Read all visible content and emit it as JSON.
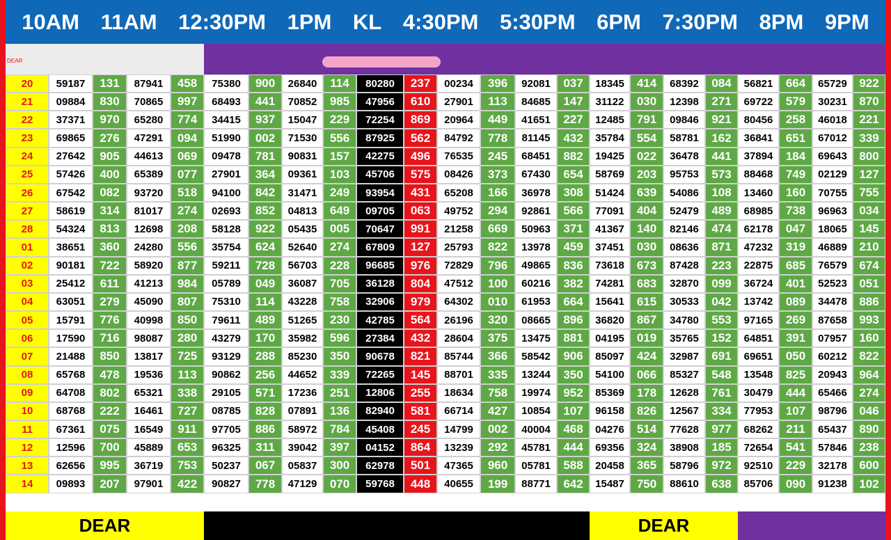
{
  "header": [
    "10AM",
    "11AM",
    "12:30PM",
    "1PM",
    "KL",
    "4:30PM",
    "5:30PM",
    "6PM",
    "7:30PM",
    "8PM",
    "9PM"
  ],
  "label": "DEAR",
  "table": {
    "rows": [
      [
        "20",
        "59187",
        "131",
        "87941",
        "458",
        "75380",
        "900",
        "26840",
        "114",
        "80280",
        "237",
        "00234",
        "396",
        "92081",
        "037",
        "18345",
        "414",
        "68392",
        "084",
        "56821",
        "664",
        "65729",
        "922"
      ],
      [
        "21",
        "09884",
        "830",
        "70865",
        "997",
        "68493",
        "441",
        "70852",
        "985",
        "47956",
        "610",
        "27901",
        "113",
        "84685",
        "147",
        "31122",
        "030",
        "12398",
        "271",
        "69722",
        "579",
        "30231",
        "870"
      ],
      [
        "22",
        "37371",
        "970",
        "65280",
        "774",
        "34415",
        "937",
        "15047",
        "229",
        "72254",
        "869",
        "20964",
        "449",
        "41651",
        "227",
        "12485",
        "791",
        "09846",
        "921",
        "80456",
        "258",
        "46018",
        "221"
      ],
      [
        "23",
        "69865",
        "276",
        "47291",
        "094",
        "51990",
        "002",
        "71530",
        "556",
        "87925",
        "562",
        "84792",
        "778",
        "81145",
        "432",
        "35784",
        "554",
        "58781",
        "162",
        "36841",
        "651",
        "67012",
        "339"
      ],
      [
        "24",
        "27642",
        "905",
        "44613",
        "069",
        "09478",
        "781",
        "90831",
        "157",
        "42275",
        "496",
        "76535",
        "245",
        "68451",
        "882",
        "19425",
        "022",
        "36478",
        "441",
        "37894",
        "184",
        "69643",
        "800"
      ],
      [
        "25",
        "57426",
        "400",
        "65389",
        "077",
        "27901",
        "364",
        "09361",
        "103",
        "45706",
        "575",
        "08426",
        "373",
        "67430",
        "654",
        "58769",
        "203",
        "95753",
        "573",
        "88468",
        "749",
        "02129",
        "127"
      ],
      [
        "26",
        "67542",
        "082",
        "93720",
        "518",
        "94100",
        "842",
        "31471",
        "249",
        "93954",
        "431",
        "65208",
        "166",
        "36978",
        "308",
        "51424",
        "639",
        "54086",
        "108",
        "13460",
        "160",
        "70755",
        "755"
      ],
      [
        "27",
        "58619",
        "314",
        "81017",
        "274",
        "02693",
        "852",
        "04813",
        "649",
        "09705",
        "063",
        "49752",
        "294",
        "92861",
        "566",
        "77091",
        "404",
        "52479",
        "489",
        "68985",
        "738",
        "96963",
        "034"
      ],
      [
        "28",
        "54324",
        "813",
        "12698",
        "208",
        "58128",
        "922",
        "05435",
        "005",
        "70647",
        "991",
        "21258",
        "669",
        "50963",
        "371",
        "41367",
        "140",
        "82146",
        "474",
        "62178",
        "047",
        "18065",
        "145"
      ],
      [
        "01",
        "38651",
        "360",
        "24280",
        "556",
        "35754",
        "624",
        "52640",
        "274",
        "67809",
        "127",
        "25793",
        "822",
        "13978",
        "459",
        "37451",
        "030",
        "08636",
        "871",
        "47232",
        "319",
        "46889",
        "210"
      ],
      [
        "02",
        "90181",
        "722",
        "58920",
        "877",
        "59211",
        "728",
        "56703",
        "228",
        "96685",
        "976",
        "72829",
        "796",
        "49865",
        "836",
        "73618",
        "673",
        "87428",
        "223",
        "22875",
        "685",
        "76579",
        "674"
      ],
      [
        "03",
        "25412",
        "611",
        "41213",
        "984",
        "05789",
        "049",
        "36087",
        "705",
        "36128",
        "804",
        "47512",
        "100",
        "60216",
        "382",
        "74281",
        "683",
        "32870",
        "099",
        "36724",
        "401",
        "52523",
        "051"
      ],
      [
        "04",
        "63051",
        "279",
        "45090",
        "807",
        "75310",
        "114",
        "43228",
        "758",
        "32906",
        "979",
        "64302",
        "010",
        "61953",
        "664",
        "15641",
        "615",
        "30533",
        "042",
        "13742",
        "089",
        "34478",
        "886"
      ],
      [
        "05",
        "15791",
        "776",
        "40998",
        "850",
        "79611",
        "489",
        "51265",
        "230",
        "42785",
        "564",
        "26196",
        "320",
        "08665",
        "896",
        "36820",
        "867",
        "34780",
        "553",
        "97165",
        "269",
        "87658",
        "993"
      ],
      [
        "06",
        "17590",
        "716",
        "98087",
        "280",
        "43279",
        "170",
        "35982",
        "596",
        "27384",
        "432",
        "28604",
        "375",
        "13475",
        "881",
        "04195",
        "019",
        "35765",
        "152",
        "64851",
        "391",
        "07957",
        "160"
      ],
      [
        "07",
        "21488",
        "850",
        "13817",
        "725",
        "93129",
        "288",
        "85230",
        "350",
        "90678",
        "821",
        "85744",
        "366",
        "58542",
        "906",
        "85097",
        "424",
        "32987",
        "691",
        "69651",
        "050",
        "60212",
        "822"
      ],
      [
        "08",
        "65768",
        "478",
        "19536",
        "113",
        "90862",
        "256",
        "44652",
        "339",
        "72265",
        "145",
        "88701",
        "335",
        "13244",
        "350",
        "54100",
        "066",
        "85327",
        "548",
        "13548",
        "825",
        "20943",
        "964"
      ],
      [
        "09",
        "64708",
        "802",
        "65321",
        "338",
        "29105",
        "571",
        "17236",
        "251",
        "12806",
        "255",
        "18634",
        "758",
        "19974",
        "952",
        "85369",
        "178",
        "12628",
        "761",
        "30479",
        "444",
        "65466",
        "274"
      ],
      [
        "10",
        "68768",
        "222",
        "16461",
        "727",
        "08785",
        "828",
        "07891",
        "136",
        "82940",
        "581",
        "66714",
        "427",
        "10854",
        "107",
        "96158",
        "826",
        "12567",
        "334",
        "77953",
        "107",
        "98796",
        "046"
      ],
      [
        "11",
        "67361",
        "075",
        "16549",
        "911",
        "97705",
        "886",
        "58972",
        "784",
        "45408",
        "245",
        "14799",
        "002",
        "40004",
        "468",
        "04276",
        "514",
        "77628",
        "977",
        "68262",
        "211",
        "65437",
        "890"
      ],
      [
        "12",
        "12596",
        "700",
        "45889",
        "653",
        "96325",
        "311",
        "39042",
        "397",
        "04152",
        "864",
        "13239",
        "292",
        "45781",
        "444",
        "69356",
        "324",
        "38908",
        "185",
        "72654",
        "541",
        "57846",
        "238"
      ],
      [
        "13",
        "62656",
        "995",
        "36719",
        "753",
        "50237",
        "067",
        "05837",
        "300",
        "62978",
        "501",
        "47365",
        "960",
        "05781",
        "588",
        "20458",
        "365",
        "58796",
        "972",
        "92510",
        "229",
        "32178",
        "600"
      ],
      [
        "14",
        "09893",
        "207",
        "97901",
        "422",
        "90827",
        "778",
        "47129",
        "070",
        "59768",
        "448",
        "40655",
        "199",
        "88771",
        "642",
        "15487",
        "750",
        "88610",
        "638",
        "85706",
        "090",
        "91238",
        "102"
      ]
    ]
  },
  "footer": [
    "DEAR",
    "DEAR"
  ]
}
